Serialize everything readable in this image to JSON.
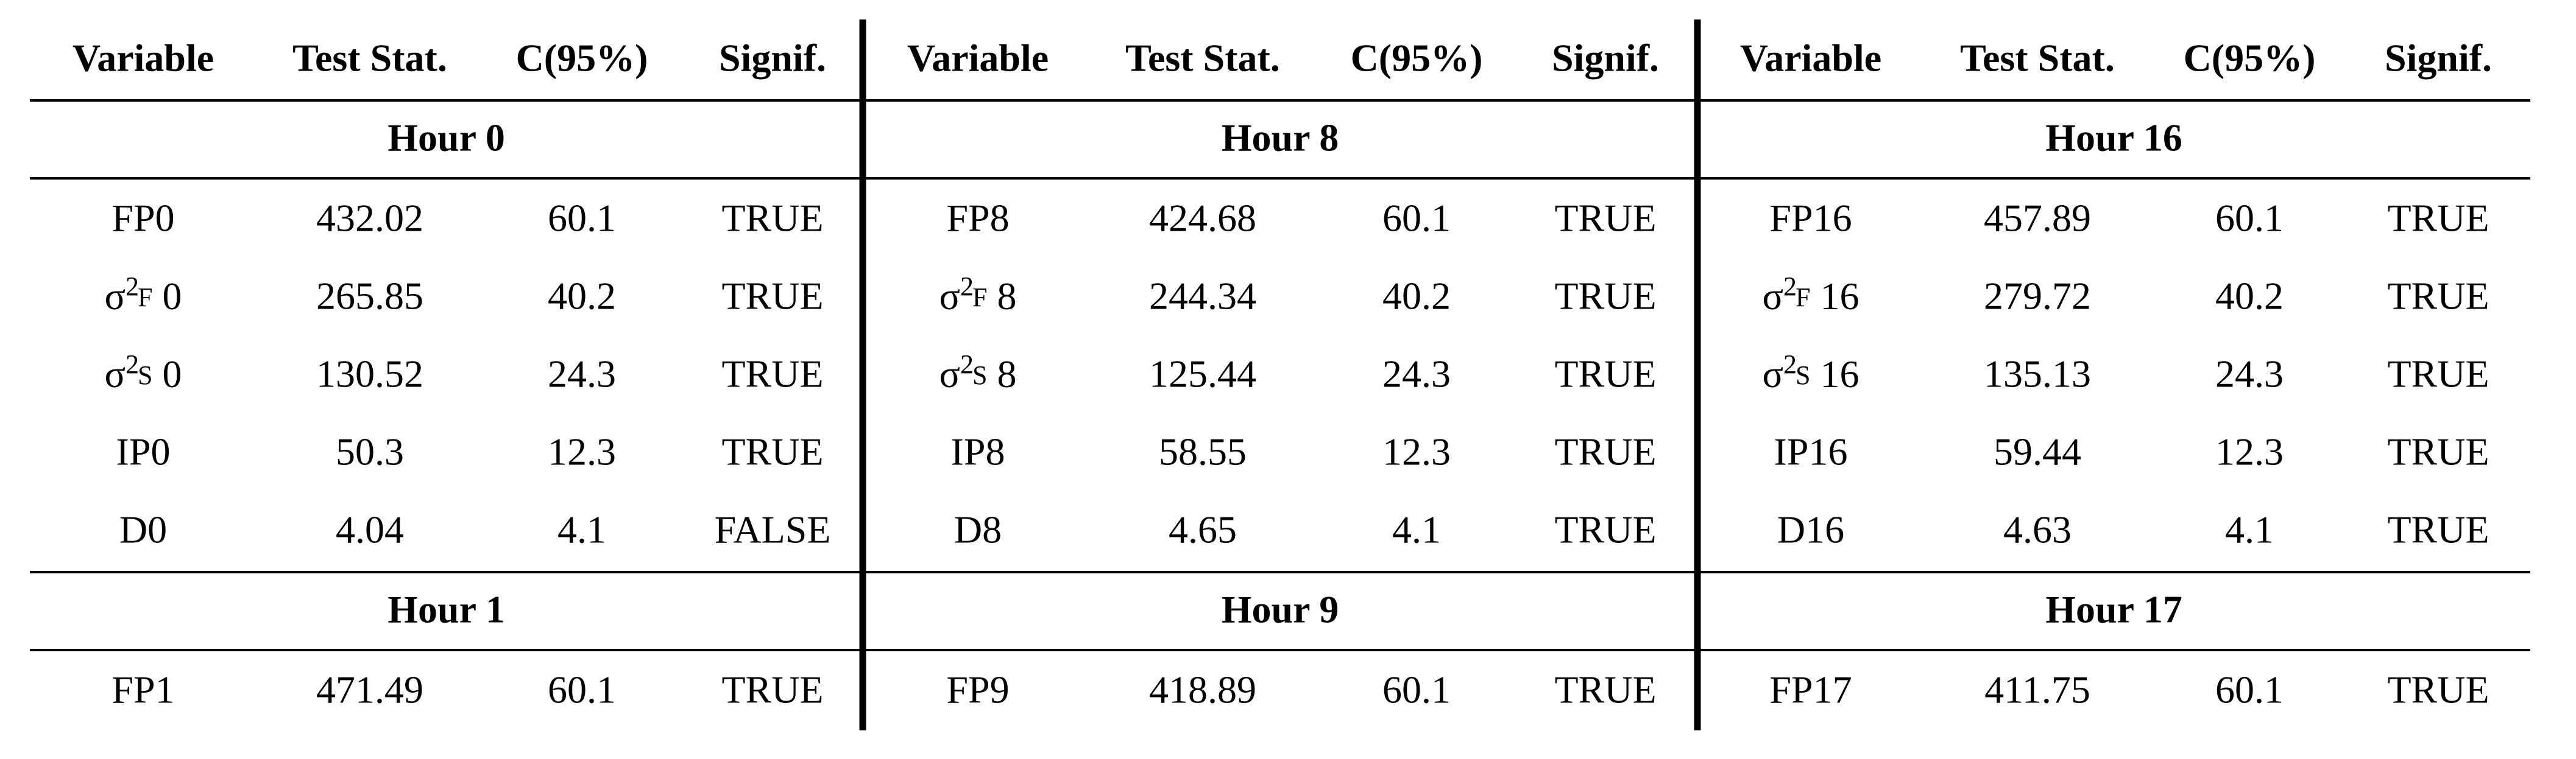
{
  "table": {
    "fail_color": "#d40000",
    "groups": [
      {
        "columns": [
          "Variable",
          "Test Stat.",
          "C(95%)",
          "Signif."
        ],
        "sections": [
          {
            "title": "Hour 0",
            "rows": [
              [
                "FP0",
                "432.02",
                "60.1",
                "TRUE"
              ],
              [
                {
                  "symbol": "σ",
                  "sup": "2",
                  "sub": "F",
                  "index": "0"
                },
                "265.85",
                "40.2",
                "TRUE"
              ],
              [
                {
                  "symbol": "σ",
                  "sup": "2",
                  "sub": "S",
                  "index": "0"
                },
                "130.52",
                "24.3",
                "TRUE"
              ],
              [
                "IP0",
                "50.3",
                "12.3",
                "TRUE"
              ],
              [
                "D0",
                "4.04",
                "4.1",
                "FALSE"
              ]
            ]
          },
          {
            "title": "Hour 1",
            "rows": [
              [
                "FP1",
                "471.49",
                "60.1",
                "TRUE"
              ]
            ]
          }
        ]
      },
      {
        "columns": [
          "Variable",
          "Test Stat.",
          "C(95%)",
          "Signif."
        ],
        "sections": [
          {
            "title": "Hour 8",
            "rows": [
              [
                "FP8",
                "424.68",
                "60.1",
                "TRUE"
              ],
              [
                {
                  "symbol": "σ",
                  "sup": "2",
                  "sub": "F",
                  "index": "8"
                },
                "244.34",
                "40.2",
                "TRUE"
              ],
              [
                {
                  "symbol": "σ",
                  "sup": "2",
                  "sub": "S",
                  "index": "8"
                },
                "125.44",
                "24.3",
                "TRUE"
              ],
              [
                "IP8",
                "58.55",
                "12.3",
                "TRUE"
              ],
              [
                "D8",
                "4.65",
                "4.1",
                "TRUE"
              ]
            ]
          },
          {
            "title": "Hour 9",
            "rows": [
              [
                "FP9",
                "418.89",
                "60.1",
                "TRUE"
              ]
            ]
          }
        ]
      },
      {
        "columns": [
          "Variable",
          "Test Stat.",
          "C(95%)",
          "Signif."
        ],
        "sections": [
          {
            "title": "Hour 16",
            "rows": [
              [
                "FP16",
                "457.89",
                "60.1",
                "TRUE"
              ],
              [
                {
                  "symbol": "σ",
                  "sup": "2",
                  "sub": "F",
                  "index": "16"
                },
                "279.72",
                "40.2",
                "TRUE"
              ],
              [
                {
                  "symbol": "σ",
                  "sup": "2",
                  "sub": "S",
                  "index": "16"
                },
                "135.13",
                "24.3",
                "TRUE"
              ],
              [
                "IP16",
                "59.44",
                "12.3",
                "TRUE"
              ],
              [
                "D16",
                "4.63",
                "4.1",
                "TRUE"
              ]
            ]
          },
          {
            "title": "Hour 17",
            "rows": [
              [
                "FP17",
                "411.75",
                "60.1",
                "TRUE"
              ]
            ]
          }
        ]
      }
    ]
  }
}
